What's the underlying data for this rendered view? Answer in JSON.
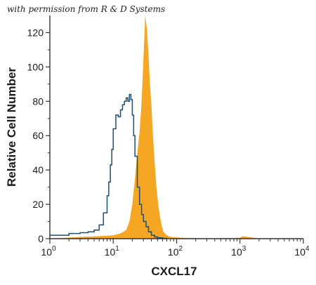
{
  "watermark": "with permission from R & D Systems",
  "chart_data": {
    "type": "area",
    "title": "",
    "xlabel": "CXCL17",
    "ylabel": "Relative Cell Number",
    "x_scale": "log",
    "xlim": [
      1,
      10000
    ],
    "ylim": [
      0,
      130
    ],
    "x_ticks": [
      1,
      10,
      100,
      1000,
      10000
    ],
    "x_tick_labels": [
      [
        "10",
        "0"
      ],
      [
        "10",
        "1"
      ],
      [
        "10",
        "2"
      ],
      [
        "10",
        "3"
      ],
      [
        "10",
        "4"
      ]
    ],
    "y_ticks": [
      0,
      20,
      40,
      60,
      80,
      100,
      120
    ],
    "y_tick_labels": [
      "0",
      "20",
      "40",
      "60",
      "80",
      "100",
      "120"
    ],
    "grid": false,
    "legend": "none",
    "series": [
      {
        "style": "filled",
        "color": "#f5a623",
        "x": [
          1,
          3,
          6,
          10,
          13,
          16,
          18,
          20,
          22,
          24,
          26,
          27,
          28,
          29,
          30,
          31,
          32,
          33,
          34,
          35,
          36,
          37,
          38,
          40,
          42,
          45,
          48,
          52,
          57,
          62,
          70,
          80,
          100,
          130,
          200,
          400,
          1000,
          1100,
          2000,
          10000
        ],
        "y": [
          0,
          1,
          1.5,
          2,
          3,
          5,
          10,
          20,
          35,
          50,
          62,
          70,
          80,
          92,
          105,
          118,
          130,
          126,
          122,
          114,
          108,
          98,
          90,
          78,
          62,
          45,
          30,
          18,
          9,
          4,
          2,
          1,
          0.7,
          0.5,
          0.3,
          0.2,
          0.5,
          1.5,
          0.1,
          0
        ]
      },
      {
        "style": "outline",
        "color": "#1f4e6e",
        "x": [
          1,
          2,
          3,
          4,
          5,
          6,
          7,
          8,
          8.5,
          9,
          9.5,
          10,
          11,
          12,
          13,
          14,
          15,
          16,
          17,
          18,
          19,
          20,
          21,
          22,
          24,
          26,
          28,
          30,
          33,
          36,
          40,
          45,
          50,
          60,
          70
        ],
        "y": [
          2,
          3,
          3.5,
          4,
          5,
          8,
          15,
          25,
          33,
          43,
          52,
          64,
          72,
          71,
          75,
          78,
          80,
          82,
          80,
          84,
          81,
          72,
          60,
          48,
          30,
          20,
          14,
          10,
          7,
          4,
          2,
          1,
          0.5,
          0.2,
          0
        ]
      }
    ]
  }
}
